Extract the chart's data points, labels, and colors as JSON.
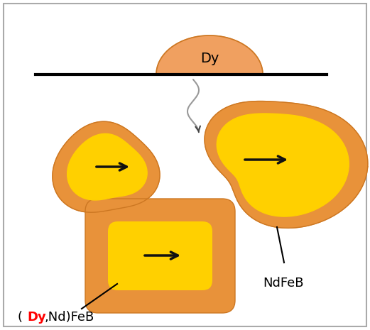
{
  "bg_color": "#ffffff",
  "border_color": "#aaaaaa",
  "orange_shell": "#E8923A",
  "orange_light": "#F0A050",
  "yellow": "#FFD000",
  "line_color": "#000000",
  "dy_label": "Dy",
  "ndfeb_label": "NdFeB",
  "arrow_color": "#111111",
  "label_fontsize": 13,
  "fig_width": 5.21,
  "fig_height": 4.65
}
